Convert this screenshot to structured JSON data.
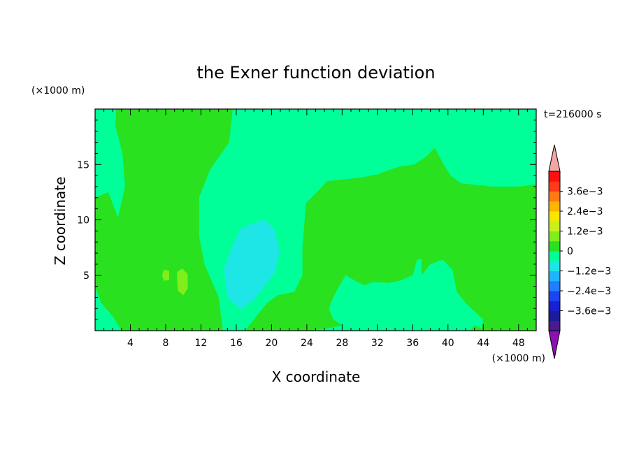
{
  "chart_data": {
    "type": "heatmap",
    "title": "the Exner function deviation",
    "xlabel": "X coordinate",
    "ylabel": "Z coordinate",
    "x_unit": "(×1000 m)",
    "y_unit": "(×1000 m)",
    "time_label": "t=216000 s",
    "xlim": [
      0,
      50
    ],
    "ylim": [
      0,
      20
    ],
    "x_ticks": [
      4,
      8,
      12,
      16,
      20,
      24,
      28,
      32,
      36,
      40,
      44,
      48
    ],
    "y_ticks": [
      5,
      10,
      15
    ],
    "colorbar": {
      "levels": [
        -0.0042,
        -0.0036,
        -0.003,
        -0.0024,
        -0.0018,
        -0.0012,
        -0.0006,
        0,
        0.0006,
        0.0012,
        0.0018,
        0.0024,
        0.003,
        0.0036,
        0.0042
      ],
      "colors": [
        "#4a1a8f",
        "#1c1c9a",
        "#1a20d2",
        "#1c44f0",
        "#1f7fff",
        "#1fb4ff",
        "#1fe6e6",
        "#00ff99",
        "#29e11f",
        "#80ee1a",
        "#c8f01a",
        "#f7e600",
        "#ffb400",
        "#ff7a14",
        "#ff3a1a",
        "#ff0f0f"
      ],
      "under_color": "#8b11b5",
      "over_color": "#f4a6a6",
      "labels": [
        {
          "text": "3.6e−3",
          "value": 0.0036
        },
        {
          "text": "2.4e−3",
          "value": 0.0024
        },
        {
          "text": "1.2e−3",
          "value": 0.0012
        },
        {
          "text": "0",
          "value": 0
        },
        {
          "text": "−1.2e−3",
          "value": -0.0012
        },
        {
          "text": "−2.4e−3",
          "value": -0.0024
        },
        {
          "text": "−3.6e−3",
          "value": -0.0036
        }
      ]
    },
    "regions": [
      {
        "level": 0,
        "color": "#00ff99",
        "polygon": [
          [
            0,
            0
          ],
          [
            50,
            0
          ],
          [
            50,
            20
          ],
          [
            0,
            20
          ]
        ]
      },
      {
        "level": 0.0006,
        "color": "#29e11f",
        "polygon": [
          [
            2.4,
            20
          ],
          [
            15.6,
            20
          ],
          [
            15.2,
            17
          ],
          [
            13,
            14.5
          ],
          [
            11.8,
            12
          ],
          [
            11.8,
            8.5
          ],
          [
            12.4,
            6
          ],
          [
            14,
            3
          ],
          [
            14.5,
            0
          ],
          [
            3,
            0
          ],
          [
            2,
            1.3
          ],
          [
            0.7,
            2.5
          ],
          [
            0,
            4
          ],
          [
            0,
            12
          ],
          [
            1.5,
            12.5
          ],
          [
            2.6,
            10.2
          ],
          [
            3.4,
            13
          ],
          [
            3.1,
            16
          ],
          [
            2.3,
            18.5
          ]
        ]
      },
      {
        "level": 0.0006,
        "color": "#29e11f",
        "polygon": [
          [
            17,
            0
          ],
          [
            19.5,
            2.5
          ],
          [
            20.7,
            3.2
          ],
          [
            22.6,
            3.5
          ],
          [
            23.5,
            5
          ],
          [
            23.5,
            7.5
          ],
          [
            23.9,
            11.5
          ],
          [
            25.5,
            12.8
          ],
          [
            26.3,
            13.5
          ],
          [
            30,
            13.8
          ],
          [
            32,
            14.1
          ],
          [
            33,
            14.4
          ],
          [
            34.5,
            14.8
          ],
          [
            36.2,
            15
          ],
          [
            37.5,
            15.7
          ],
          [
            38.5,
            16.5
          ],
          [
            39.5,
            15
          ],
          [
            40.3,
            14
          ],
          [
            41.5,
            13.3
          ],
          [
            45,
            13
          ],
          [
            48,
            13
          ],
          [
            50,
            13.2
          ],
          [
            50,
            0
          ],
          [
            46.2,
            0
          ],
          [
            45,
            2
          ],
          [
            44.7,
            3
          ],
          [
            46,
            5.5
          ],
          [
            47.5,
            6
          ],
          [
            48.5,
            5.5
          ],
          [
            49,
            4
          ],
          [
            48.5,
            1.5
          ],
          [
            48,
            0
          ],
          [
            42.5,
            0
          ],
          [
            43,
            0.5
          ],
          [
            43.8,
            0.2
          ],
          [
            44,
            1
          ],
          [
            42,
            2.5
          ],
          [
            41,
            3.5
          ],
          [
            40.5,
            5.5
          ],
          [
            39.4,
            6.4
          ],
          [
            38,
            6
          ],
          [
            37,
            5
          ],
          [
            37,
            6.5
          ],
          [
            36.5,
            6.4
          ],
          [
            36,
            5
          ],
          [
            34.5,
            4.5
          ],
          [
            33.2,
            4.3
          ],
          [
            31.5,
            4.4
          ],
          [
            30.5,
            4.1
          ],
          [
            29.5,
            4.5
          ],
          [
            28.4,
            5
          ],
          [
            27.5,
            3.8
          ],
          [
            27,
            3
          ],
          [
            26.5,
            2
          ],
          [
            27,
            1
          ],
          [
            28,
            0.5
          ],
          [
            27,
            0.3
          ],
          [
            24.5,
            0
          ],
          [
            20.4,
            0
          ]
        ]
      },
      {
        "level": -0.0006,
        "color": "#1fe6e6",
        "polygon": [
          [
            14.6,
            5.5
          ],
          [
            15.5,
            7.5
          ],
          [
            16.5,
            9.2
          ],
          [
            18,
            9.7
          ],
          [
            19.2,
            10
          ],
          [
            20.3,
            9.2
          ],
          [
            20.9,
            7.2
          ],
          [
            20.4,
            5.3
          ],
          [
            19.2,
            4
          ],
          [
            18,
            2.8
          ],
          [
            16.5,
            1.9
          ],
          [
            15,
            3
          ]
        ]
      },
      {
        "level": 0.0012,
        "color": "#80ee1a",
        "polygon": [
          [
            9.3,
            4.6
          ],
          [
            9.3,
            5.3
          ],
          [
            9.9,
            5.6
          ],
          [
            10.5,
            5.1
          ],
          [
            10.5,
            3.8
          ],
          [
            10,
            3.2
          ],
          [
            9.4,
            3.6
          ]
        ]
      },
      {
        "level": 0.0012,
        "color": "#80ee1a",
        "polygon": [
          [
            7.6,
            5
          ],
          [
            7.8,
            5.5
          ],
          [
            8.4,
            5.4
          ],
          [
            8.4,
            4.6
          ],
          [
            7.8,
            4.5
          ]
        ]
      }
    ]
  }
}
